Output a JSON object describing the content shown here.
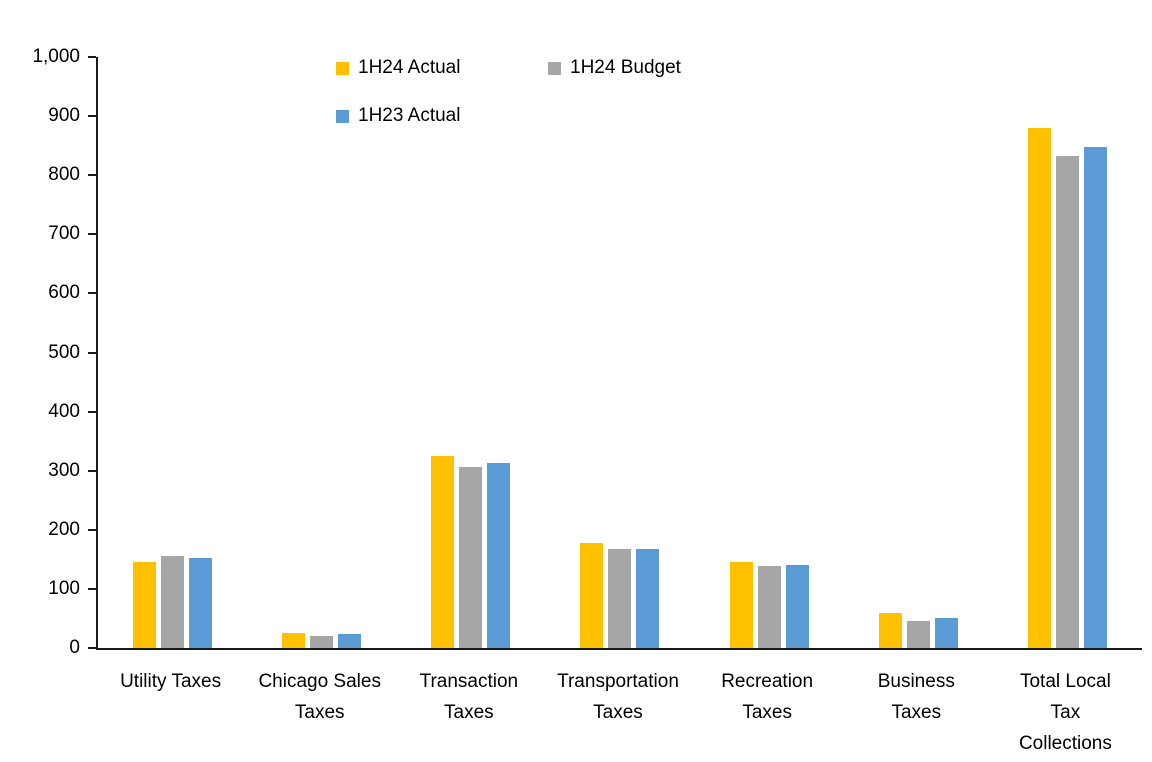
{
  "chart_data": {
    "type": "bar",
    "title": "",
    "xlabel": "",
    "ylabel": "",
    "grid": false,
    "legend_position": "top-center",
    "ylim": [
      0,
      1000
    ],
    "ytick_interval": 100,
    "yticks": [
      {
        "value": 0,
        "label": "0"
      },
      {
        "value": 100,
        "label": "100"
      },
      {
        "value": 200,
        "label": "200"
      },
      {
        "value": 300,
        "label": "300"
      },
      {
        "value": 400,
        "label": "400"
      },
      {
        "value": 500,
        "label": "500"
      },
      {
        "value": 600,
        "label": "600"
      },
      {
        "value": 700,
        "label": "700"
      },
      {
        "value": 800,
        "label": "800"
      },
      {
        "value": 900,
        "label": "900"
      },
      {
        "value": 1000,
        "label": "1,000"
      }
    ],
    "categories": [
      "Utility Taxes",
      "Chicago Sales\nTaxes",
      "Transaction\nTaxes",
      "Transportation\nTaxes",
      "Recreation\nTaxes",
      "Business\nTaxes",
      "Total Local\nTax\nCollections"
    ],
    "series": [
      {
        "name": "1H24 Actual",
        "color": "#FFC000",
        "values": [
          145,
          26,
          325,
          178,
          146,
          60,
          880
        ]
      },
      {
        "name": "1H24 Budget",
        "color": "#A6A6A6",
        "values": [
          155,
          21,
          306,
          167,
          139,
          45,
          833
        ]
      },
      {
        "name": "1H23 Actual",
        "color": "#5B9BD5",
        "values": [
          152,
          24,
          313,
          168,
          141,
          50,
          848
        ]
      }
    ]
  }
}
